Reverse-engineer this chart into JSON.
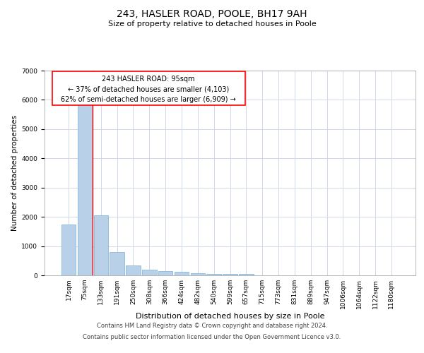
{
  "title_line1": "243, HASLER ROAD, POOLE, BH17 9AH",
  "title_line2": "Size of property relative to detached houses in Poole",
  "xlabel": "Distribution of detached houses by size in Poole",
  "ylabel": "Number of detached properties",
  "bar_color": "#b8d0e8",
  "bar_edge_color": "#7aafd4",
  "categories": [
    "17sqm",
    "75sqm",
    "133sqm",
    "191sqm",
    "250sqm",
    "308sqm",
    "366sqm",
    "424sqm",
    "482sqm",
    "540sqm",
    "599sqm",
    "657sqm",
    "715sqm",
    "773sqm",
    "831sqm",
    "889sqm",
    "947sqm",
    "1006sqm",
    "1064sqm",
    "1122sqm",
    "1180sqm"
  ],
  "values": [
    1750,
    6000,
    2050,
    800,
    350,
    200,
    150,
    120,
    80,
    60,
    50,
    50,
    10,
    5,
    5,
    5,
    5,
    5,
    5,
    5,
    5
  ],
  "ylim": [
    0,
    7000
  ],
  "yticks": [
    0,
    1000,
    2000,
    3000,
    4000,
    5000,
    6000,
    7000
  ],
  "property_label": "243 HASLER ROAD: 95sqm",
  "annotation_line1": "← 37% of detached houses are smaller (4,103)",
  "annotation_line2": "62% of semi-detached houses are larger (6,909) →",
  "red_line_x": 1.5,
  "footer_line1": "Contains HM Land Registry data © Crown copyright and database right 2024.",
  "footer_line2": "Contains public sector information licensed under the Open Government Licence v3.0.",
  "grid_color": "#d0d8e8",
  "title_fontsize": 10,
  "subtitle_fontsize": 8,
  "ylabel_fontsize": 7.5,
  "xlabel_fontsize": 8,
  "tick_fontsize": 6.5,
  "annot_fontsize": 7,
  "footer_fontsize": 6
}
